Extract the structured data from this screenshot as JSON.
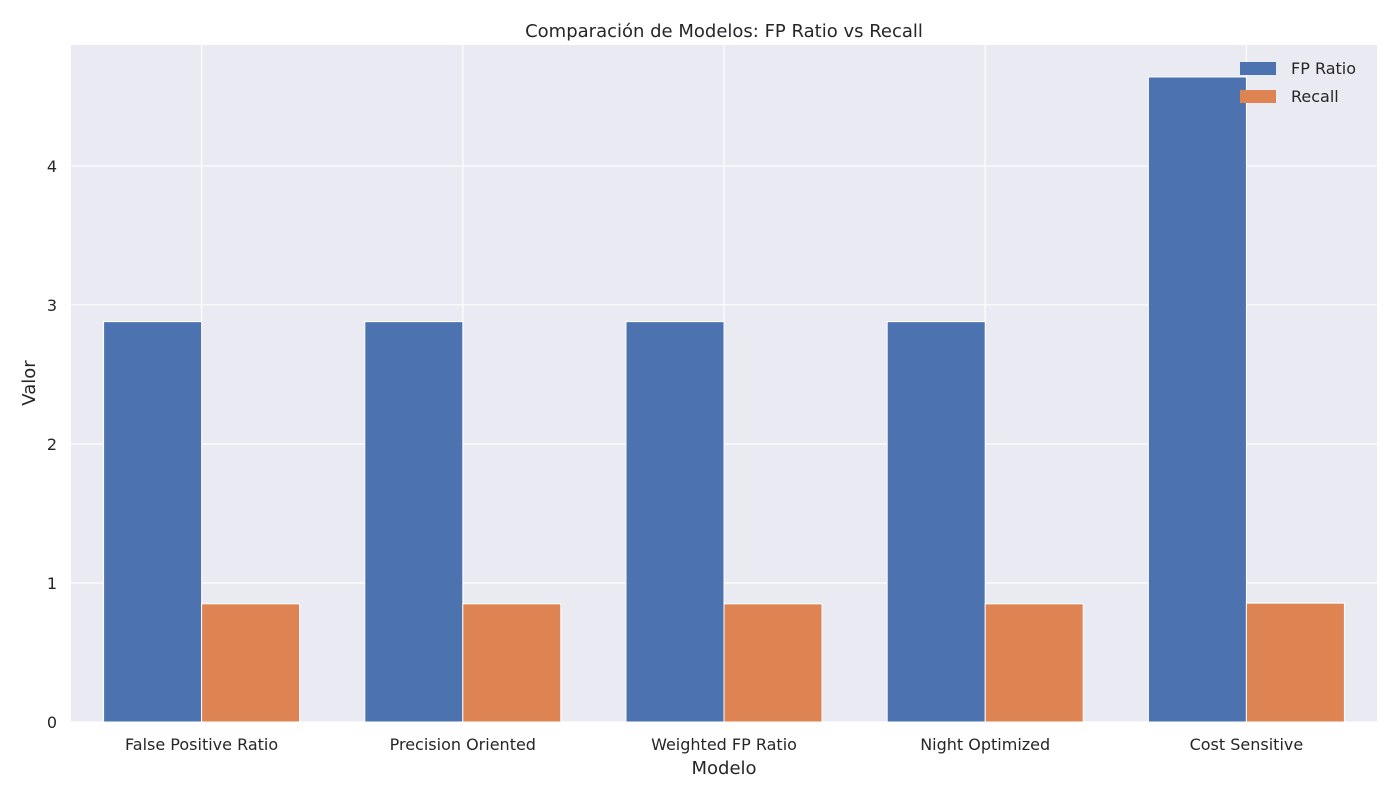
{
  "chart_data": {
    "type": "bar",
    "title": "Comparación de Modelos: FP Ratio vs Recall",
    "xlabel": "Modelo",
    "ylabel": "Valor",
    "categories": [
      "False Positive Ratio",
      "Precision Oriented",
      "Weighted FP Ratio",
      "Night Optimized",
      "Cost Sensitive"
    ],
    "series": [
      {
        "name": "FP Ratio",
        "color": "#4c72b0",
        "values": [
          2.88,
          2.88,
          2.88,
          2.88,
          4.64
        ]
      },
      {
        "name": "Recall",
        "color": "#dd8452",
        "values": [
          0.85,
          0.85,
          0.85,
          0.85,
          0.855
        ]
      }
    ],
    "ylim": [
      0,
      4.87
    ],
    "yticks": [
      0,
      1,
      2,
      3,
      4
    ],
    "ytick_labels": [
      "0",
      "1",
      "2",
      "3",
      "4"
    ],
    "grid": true,
    "legend_position": "top-right",
    "background_color": "#eaeaf2"
  }
}
